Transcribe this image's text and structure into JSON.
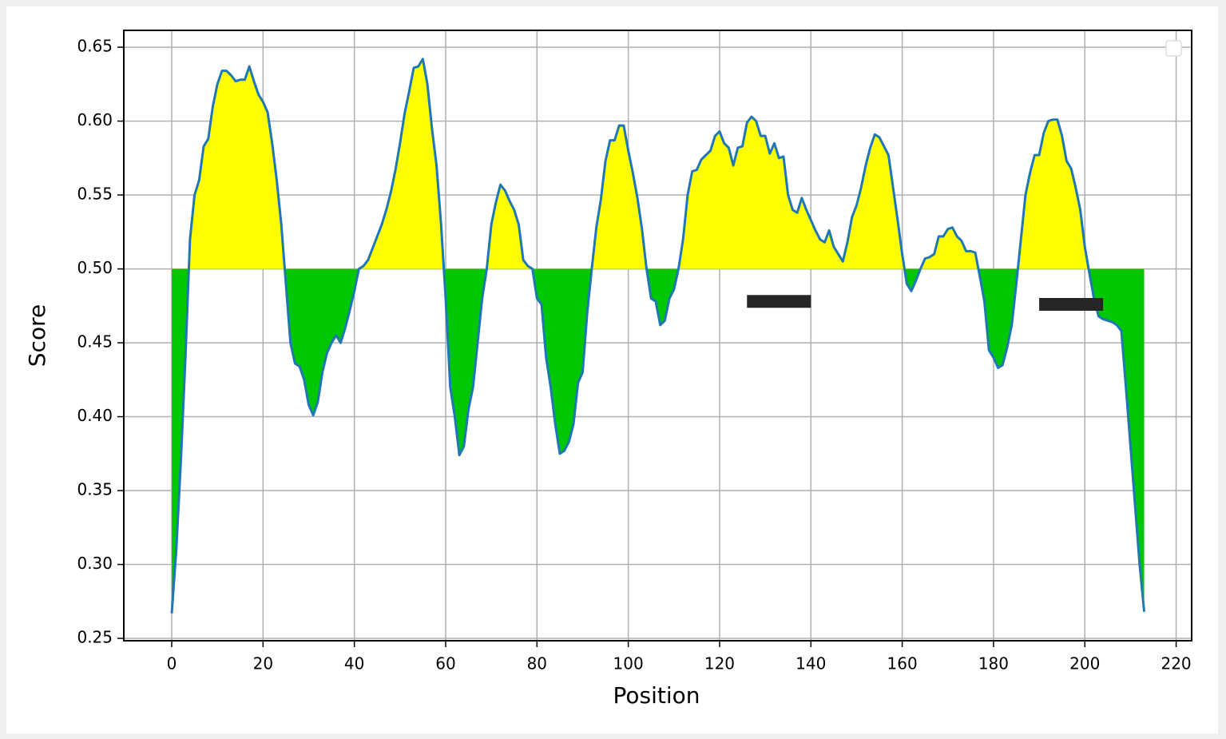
{
  "chart_data": {
    "type": "threshold-area",
    "xlabel": "Position",
    "ylabel": "Score",
    "x": [
      0,
      1,
      2,
      3,
      4,
      5,
      6,
      7,
      8,
      9,
      10,
      11,
      12,
      13,
      14,
      15,
      16,
      17,
      18,
      19,
      20,
      21,
      22,
      23,
      24,
      25,
      26,
      27,
      28,
      29,
      30,
      31,
      32,
      33,
      34,
      35,
      36,
      37,
      38,
      39,
      40,
      41,
      42,
      43,
      44,
      45,
      46,
      47,
      48,
      49,
      50,
      51,
      52,
      53,
      54,
      55,
      56,
      57,
      58,
      59,
      60,
      61,
      62,
      63,
      64,
      65,
      66,
      67,
      68,
      69,
      70,
      71,
      72,
      73,
      74,
      75,
      76,
      77,
      78,
      79,
      80,
      81,
      82,
      83,
      84,
      85,
      86,
      87,
      88,
      89,
      90,
      91,
      92,
      93,
      94,
      95,
      96,
      97,
      98,
      99,
      100,
      101,
      102,
      103,
      104,
      105,
      106,
      107,
      108,
      109,
      110,
      111,
      112,
      113,
      114,
      115,
      116,
      117,
      118,
      119,
      120,
      121,
      122,
      123,
      124,
      125,
      126,
      127,
      128,
      129,
      130,
      131,
      132,
      133,
      134,
      135,
      136,
      137,
      138,
      139,
      140,
      141,
      142,
      143,
      144,
      145,
      146,
      147,
      148,
      149,
      150,
      151,
      152,
      153,
      154,
      155,
      156,
      157,
      158,
      159,
      160,
      161,
      162,
      163,
      164,
      165,
      166,
      167,
      168,
      169,
      170,
      171,
      172,
      173,
      174,
      175,
      176,
      177,
      178,
      179,
      180,
      181,
      182,
      183,
      184,
      185,
      186,
      187,
      188,
      189,
      190,
      191,
      192,
      193,
      194,
      195,
      196,
      197,
      198,
      199,
      200,
      201,
      202,
      203,
      204,
      205,
      206,
      207,
      208,
      209,
      210,
      211,
      212,
      213
    ],
    "values": [
      0.267,
      0.31,
      0.37,
      0.44,
      0.52,
      0.55,
      0.56,
      0.583,
      0.588,
      0.61,
      0.625,
      0.634,
      0.634,
      0.631,
      0.627,
      0.628,
      0.628,
      0.637,
      0.627,
      0.618,
      0.613,
      0.606,
      0.585,
      0.56,
      0.53,
      0.49,
      0.45,
      0.436,
      0.434,
      0.425,
      0.408,
      0.401,
      0.41,
      0.43,
      0.443,
      0.45,
      0.455,
      0.45,
      0.46,
      0.472,
      0.485,
      0.5,
      0.502,
      0.506,
      0.514,
      0.522,
      0.53,
      0.54,
      0.552,
      0.567,
      0.585,
      0.605,
      0.62,
      0.636,
      0.637,
      0.642,
      0.625,
      0.595,
      0.57,
      0.53,
      0.48,
      0.42,
      0.4,
      0.374,
      0.38,
      0.405,
      0.42,
      0.45,
      0.48,
      0.5,
      0.53,
      0.545,
      0.557,
      0.553,
      0.546,
      0.54,
      0.53,
      0.506,
      0.502,
      0.5,
      0.48,
      0.476,
      0.44,
      0.42,
      0.395,
      0.375,
      0.377,
      0.383,
      0.395,
      0.423,
      0.43,
      0.47,
      0.5,
      0.528,
      0.547,
      0.573,
      0.587,
      0.587,
      0.597,
      0.597,
      0.58,
      0.565,
      0.548,
      0.527,
      0.5,
      0.48,
      0.478,
      0.462,
      0.465,
      0.48,
      0.486,
      0.5,
      0.52,
      0.55,
      0.566,
      0.567,
      0.574,
      0.577,
      0.58,
      0.59,
      0.593,
      0.585,
      0.582,
      0.57,
      0.582,
      0.583,
      0.599,
      0.603,
      0.6,
      0.59,
      0.59,
      0.578,
      0.585,
      0.575,
      0.576,
      0.55,
      0.54,
      0.538,
      0.548,
      0.54,
      0.533,
      0.526,
      0.52,
      0.518,
      0.526,
      0.515,
      0.51,
      0.505,
      0.518,
      0.535,
      0.543,
      0.555,
      0.57,
      0.582,
      0.591,
      0.589,
      0.583,
      0.577,
      0.555,
      0.533,
      0.51,
      0.49,
      0.485,
      0.492,
      0.5,
      0.507,
      0.508,
      0.51,
      0.522,
      0.522,
      0.527,
      0.528,
      0.522,
      0.519,
      0.512,
      0.512,
      0.511,
      0.495,
      0.478,
      0.445,
      0.44,
      0.433,
      0.435,
      0.447,
      0.462,
      0.49,
      0.52,
      0.55,
      0.565,
      0.577,
      0.577,
      0.592,
      0.6,
      0.601,
      0.601,
      0.59,
      0.573,
      0.568,
      0.555,
      0.54,
      0.515,
      0.497,
      0.48,
      0.468,
      0.466,
      0.465,
      0.464,
      0.462,
      0.458,
      0.42,
      0.38,
      0.34,
      0.3,
      0.268
    ],
    "baseline": 0.5,
    "line_color": "#1f77b4",
    "above_color": "#ffff00",
    "below_color": "#00c800",
    "marker_bars": [
      {
        "x": [
          126,
          140
        ],
        "y": 0.478
      },
      {
        "x": [
          190,
          204
        ],
        "y": 0.476
      }
    ],
    "marker_color": "#262626",
    "xlim": [
      -10.5,
      223.4
    ],
    "ylim": [
      0.2484,
      0.6614
    ],
    "xticks": [
      0,
      20,
      40,
      60,
      80,
      100,
      120,
      140,
      160,
      180,
      200,
      220
    ],
    "yticks": [
      0.25,
      {
        "value": 0.3,
        "label": "0.30"
      },
      0.35,
      {
        "value": 0.4,
        "label": "0.40"
      },
      0.45,
      {
        "value": 0.5,
        "label": "0.50"
      },
      0.55,
      {
        "value": 0.6,
        "label": "0.60"
      },
      0.65
    ],
    "grid": true
  }
}
